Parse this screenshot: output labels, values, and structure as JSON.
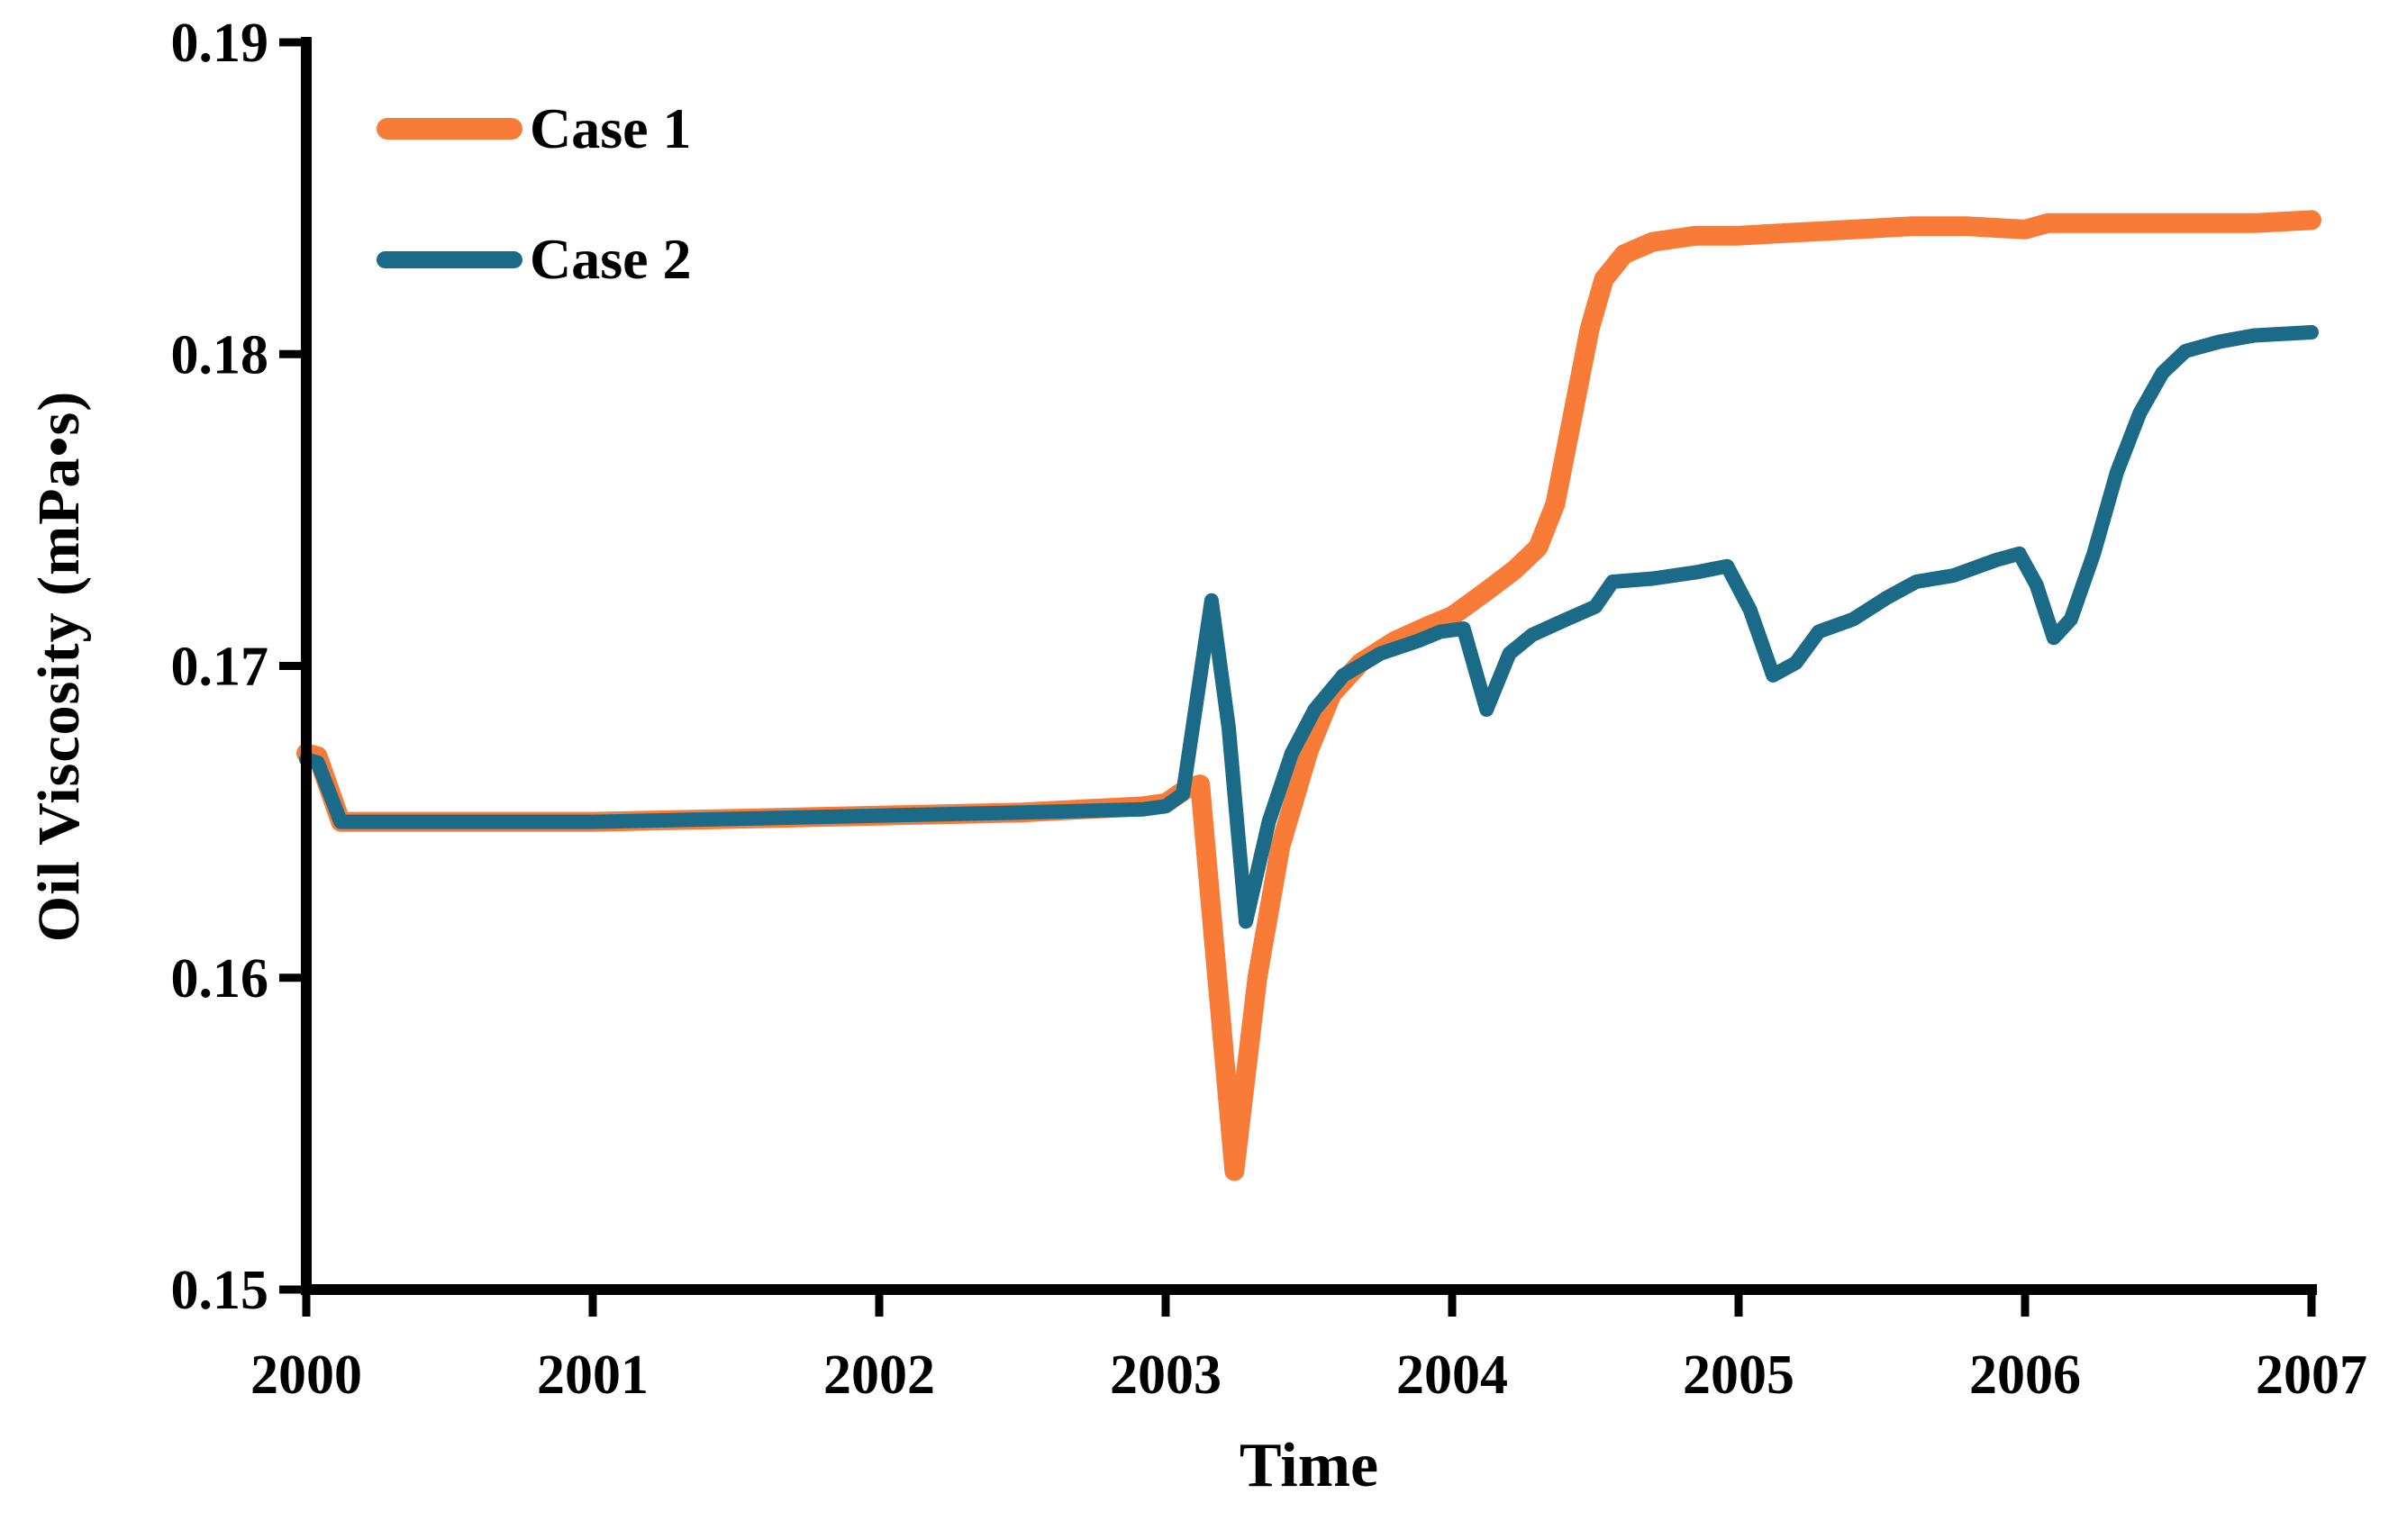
{
  "figure": {
    "y_axis_title": "Oil Viscosity (mPa•s)",
    "x_axis_title": "Time"
  },
  "legend": {
    "items": [
      {
        "label": "Case 1"
      },
      {
        "label": "Case 2"
      }
    ]
  },
  "chart_data": {
    "type": "line",
    "title": "",
    "xlabel": "Time",
    "ylabel": "Oil Viscosity (mPa•s)",
    "xlim": [
      2000,
      2007
    ],
    "ylim": [
      0.15,
      0.19
    ],
    "x_ticks": [
      2000,
      2001,
      2002,
      2003,
      2004,
      2005,
      2006,
      2007
    ],
    "x_tick_labels": [
      "2000",
      "2001",
      "2002",
      "2003",
      "2004",
      "2005",
      "2006",
      "2007"
    ],
    "y_ticks": [
      0.19,
      0.18,
      0.17,
      0.16,
      0.15
    ],
    "y_tick_labels": [
      "0.19",
      "0.18",
      "0.17",
      "0.16",
      "0.15"
    ],
    "grid": false,
    "legend_position": "top-left-inside",
    "axis_color": "#000000",
    "series": [
      {
        "name": "Case 1",
        "color": "#F87B38",
        "line_width": 22,
        "points": [
          [
            2000.0,
            0.1672
          ],
          [
            2000.04,
            0.1671
          ],
          [
            2000.12,
            0.165
          ],
          [
            2000.5,
            0.165
          ],
          [
            2001.0,
            0.165
          ],
          [
            2001.5,
            0.1651
          ],
          [
            2002.0,
            0.1652
          ],
          [
            2002.5,
            0.1653
          ],
          [
            2002.92,
            0.1655
          ],
          [
            2003.0,
            0.1656
          ],
          [
            2003.08,
            0.1661
          ],
          [
            2003.12,
            0.1662
          ],
          [
            2003.24,
            0.1538
          ],
          [
            2003.32,
            0.16
          ],
          [
            2003.4,
            0.1642
          ],
          [
            2003.5,
            0.1673
          ],
          [
            2003.58,
            0.1691
          ],
          [
            2003.68,
            0.1701
          ],
          [
            2003.8,
            0.1708
          ],
          [
            2003.92,
            0.1713
          ],
          [
            2004.0,
            0.1716
          ],
          [
            2004.12,
            0.1724
          ],
          [
            2004.22,
            0.1731
          ],
          [
            2004.3,
            0.1738
          ],
          [
            2004.36,
            0.1752
          ],
          [
            2004.42,
            0.178
          ],
          [
            2004.48,
            0.1808
          ],
          [
            2004.53,
            0.1824
          ],
          [
            2004.6,
            0.1832
          ],
          [
            2004.7,
            0.1836
          ],
          [
            2004.85,
            0.1838
          ],
          [
            2005.0,
            0.1838
          ],
          [
            2005.2,
            0.1839
          ],
          [
            2005.4,
            0.184
          ],
          [
            2005.6,
            0.1841
          ],
          [
            2005.8,
            0.1841
          ],
          [
            2006.0,
            0.184
          ],
          [
            2006.08,
            0.1842
          ],
          [
            2006.3,
            0.1842
          ],
          [
            2006.6,
            0.1842
          ],
          [
            2006.8,
            0.1842
          ],
          [
            2007.0,
            0.1843
          ]
        ]
      },
      {
        "name": "Case 2",
        "color": "#1A6A88",
        "line_width": 16,
        "points": [
          [
            2000.0,
            0.167
          ],
          [
            2000.04,
            0.1669
          ],
          [
            2000.12,
            0.165
          ],
          [
            2000.5,
            0.165
          ],
          [
            2001.0,
            0.165
          ],
          [
            2001.5,
            0.1651
          ],
          [
            2002.0,
            0.1652
          ],
          [
            2002.5,
            0.1653
          ],
          [
            2002.92,
            0.1654
          ],
          [
            2003.0,
            0.1655
          ],
          [
            2003.06,
            0.1659
          ],
          [
            2003.16,
            0.1721
          ],
          [
            2003.22,
            0.168
          ],
          [
            2003.28,
            0.1618
          ],
          [
            2003.36,
            0.165
          ],
          [
            2003.44,
            0.1672
          ],
          [
            2003.52,
            0.1686
          ],
          [
            2003.62,
            0.1697
          ],
          [
            2003.75,
            0.1704
          ],
          [
            2003.88,
            0.1708
          ],
          [
            2003.96,
            0.1711
          ],
          [
            2004.04,
            0.1712
          ],
          [
            2004.12,
            0.1686
          ],
          [
            2004.2,
            0.1704
          ],
          [
            2004.28,
            0.171
          ],
          [
            2004.4,
            0.1715
          ],
          [
            2004.5,
            0.1719
          ],
          [
            2004.56,
            0.1727
          ],
          [
            2004.7,
            0.1728
          ],
          [
            2004.85,
            0.173
          ],
          [
            2004.96,
            0.1732
          ],
          [
            2005.04,
            0.1718
          ],
          [
            2005.12,
            0.1697
          ],
          [
            2005.2,
            0.1701
          ],
          [
            2005.28,
            0.1711
          ],
          [
            2005.4,
            0.1715
          ],
          [
            2005.52,
            0.1722
          ],
          [
            2005.62,
            0.1727
          ],
          [
            2005.75,
            0.1729
          ],
          [
            2005.9,
            0.1734
          ],
          [
            2005.98,
            0.1736
          ],
          [
            2006.04,
            0.1726
          ],
          [
            2006.1,
            0.1709
          ],
          [
            2006.16,
            0.1715
          ],
          [
            2006.24,
            0.1736
          ],
          [
            2006.32,
            0.1762
          ],
          [
            2006.4,
            0.1781
          ],
          [
            2006.48,
            0.1794
          ],
          [
            2006.56,
            0.1801
          ],
          [
            2006.68,
            0.1804
          ],
          [
            2006.8,
            0.1806
          ],
          [
            2007.0,
            0.1807
          ]
        ]
      }
    ]
  }
}
